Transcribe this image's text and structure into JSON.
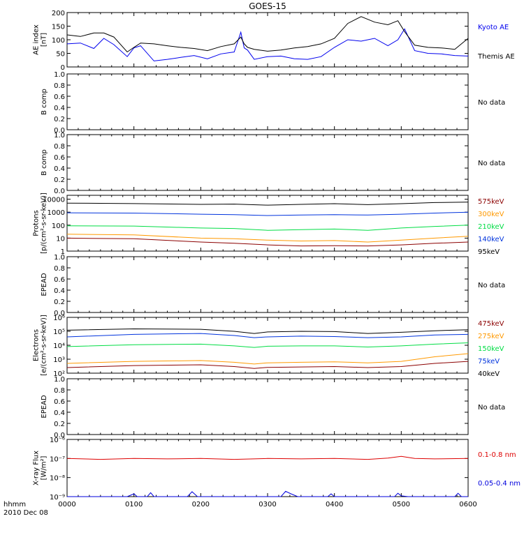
{
  "chart_data": {
    "title": "GOES-15",
    "type": "line",
    "footer": {
      "time_label": "hhmm",
      "date_label": "2010 Dec 08"
    },
    "x_ticks": [
      "0000",
      "0100",
      "0200",
      "0300",
      "0400",
      "0500",
      "0600"
    ],
    "xlim_hours": [
      0,
      6
    ],
    "panels": [
      {
        "id": "ae",
        "ylabel": [
          "AE index",
          "[nT]"
        ],
        "ylim": [
          0,
          200
        ],
        "scale": "linear",
        "y_ticks": [
          "0",
          "50",
          "100",
          "150",
          "200"
        ],
        "tick_values": [
          0,
          50,
          100,
          150,
          200
        ],
        "series": [
          {
            "name": "Kyoto AE",
            "color": "#0000ee",
            "x": [
              0,
              0.2,
              0.4,
              0.55,
              0.7,
              0.9,
              1.0,
              1.1,
              1.3,
              1.5,
              1.7,
              1.9,
              2.1,
              2.3,
              2.5,
              2.6,
              2.65,
              2.7,
              2.8,
              3.0,
              3.2,
              3.4,
              3.6,
              3.8,
              4.0,
              4.2,
              4.4,
              4.6,
              4.8,
              4.95,
              5.05,
              5.2,
              5.4,
              5.6,
              5.8,
              6.0
            ],
            "y": [
              85,
              88,
              68,
              105,
              82,
              38,
              70,
              78,
              22,
              28,
              35,
              42,
              30,
              48,
              55,
              128,
              70,
              62,
              28,
              38,
              40,
              30,
              28,
              38,
              72,
              100,
              95,
              105,
              78,
              100,
              140,
              60,
              50,
              48,
              42,
              40
            ]
          },
          {
            "name": "Themis AE",
            "color": "#000000",
            "x": [
              0,
              0.2,
              0.4,
              0.55,
              0.7,
              0.9,
              1.0,
              1.1,
              1.3,
              1.5,
              1.7,
              1.9,
              2.1,
              2.3,
              2.5,
              2.6,
              2.65,
              2.7,
              2.8,
              3.0,
              3.2,
              3.4,
              3.6,
              3.8,
              4.0,
              4.2,
              4.4,
              4.6,
              4.8,
              4.95,
              5.05,
              5.2,
              5.4,
              5.6,
              5.8,
              6.0
            ],
            "y": [
              118,
              112,
              125,
              125,
              110,
              55,
              72,
              88,
              85,
              78,
              72,
              68,
              60,
              75,
              85,
              110,
              85,
              72,
              65,
              58,
              62,
              70,
              75,
              85,
              105,
              160,
              185,
              165,
              155,
              170,
              130,
              80,
              72,
              70,
              65,
              105
            ]
          }
        ]
      },
      {
        "id": "b1",
        "ylabel": [
          "B comp"
        ],
        "ylim": [
          0,
          1
        ],
        "scale": "linear",
        "y_ticks": [
          "0.0",
          "0.2",
          "0.4",
          "0.6",
          "0.8",
          "1.0"
        ],
        "tick_values": [
          0,
          0.2,
          0.4,
          0.6,
          0.8,
          1.0
        ],
        "no_data": "No data",
        "series": []
      },
      {
        "id": "b2",
        "ylabel": [
          "B comp"
        ],
        "ylim": [
          0,
          1
        ],
        "scale": "linear",
        "y_ticks": [
          "0.0",
          "0.2",
          "0.4",
          "0.6",
          "0.8",
          "1.0"
        ],
        "tick_values": [
          0,
          0.2,
          0.4,
          0.6,
          0.8,
          1.0
        ],
        "no_data": "No data",
        "series": []
      },
      {
        "id": "protons",
        "ylabel": [
          "Protons",
          "[p/(cm²-s-sr-keV)]"
        ],
        "ylim": [
          1,
          20000
        ],
        "scale": "log",
        "y_ticks": [
          "1",
          "10",
          "100",
          "1000",
          "10000"
        ],
        "tick_values": [
          1,
          10,
          100,
          1000,
          10000
        ],
        "series": [
          {
            "name": "575keV",
            "color": "#8b0000",
            "x": [
              0,
              1,
              2,
              2.5,
              3,
              3.5,
              4,
              4.5,
              5,
              5.5,
              6
            ],
            "y": [
              10,
              9,
              5,
              4,
              3,
              2.5,
              2.6,
              2.5,
              3,
              4,
              5
            ]
          },
          {
            "name": "300keV",
            "color": "#ff9900",
            "x": [
              0,
              1,
              2,
              2.5,
              3,
              3.5,
              4,
              4.5,
              5,
              5.5,
              6
            ],
            "y": [
              20,
              18,
              10,
              9,
              7,
              6,
              6.5,
              5,
              7,
              10,
              14
            ]
          },
          {
            "name": "210keV",
            "color": "#00dd44",
            "x": [
              0,
              1,
              2,
              2.5,
              3,
              3.5,
              4,
              4.5,
              5,
              5.5,
              6
            ],
            "y": [
              90,
              85,
              60,
              55,
              40,
              45,
              50,
              40,
              60,
              80,
              100
            ]
          },
          {
            "name": "140keV",
            "color": "#0033dd",
            "x": [
              0,
              1,
              2,
              2.5,
              3,
              3.5,
              4,
              4.5,
              5,
              5.5,
              6
            ],
            "y": [
              900,
              850,
              700,
              650,
              550,
              600,
              650,
              600,
              700,
              850,
              1000
            ]
          },
          {
            "name": "95keV",
            "color": "#000000",
            "x": [
              0,
              1,
              2,
              2.5,
              3,
              3.5,
              4,
              4.5,
              5,
              5.5,
              6
            ],
            "y": [
              5000,
              4600,
              4000,
              4200,
              3500,
              4000,
              4500,
              3800,
              4500,
              5500,
              6000
            ]
          }
        ]
      },
      {
        "id": "epead1",
        "ylabel": [
          "EPEAD"
        ],
        "ylim": [
          0,
          1
        ],
        "scale": "linear",
        "y_ticks": [
          "0.0",
          "0.2",
          "0.4",
          "0.6",
          "0.8",
          "1.0"
        ],
        "tick_values": [
          0,
          0.2,
          0.4,
          0.6,
          0.8,
          1.0
        ],
        "no_data": "No data",
        "series": []
      },
      {
        "id": "electrons",
        "ylabel": [
          "Electrons",
          "[e/(cm²-s-sr-keV)]"
        ],
        "ylim": [
          100,
          1000000
        ],
        "scale": "log",
        "y_ticks": [
          "10²",
          "10³",
          "10⁴",
          "10⁵",
          "10⁶"
        ],
        "tick_values": [
          100,
          1000,
          10000,
          100000,
          1000000
        ],
        "series": [
          {
            "name": "475keV",
            "color": "#8b0000",
            "x": [
              0,
              1,
              2,
              2.5,
              2.8,
              3,
              3.5,
              4,
              4.5,
              5,
              5.5,
              6
            ],
            "y": [
              250,
              350,
              400,
              300,
              220,
              260,
              280,
              300,
              250,
              300,
              500,
              700
            ]
          },
          {
            "name": "275keV",
            "color": "#ff9900",
            "x": [
              0,
              1,
              2,
              2.5,
              2.8,
              3,
              3.5,
              4,
              4.5,
              5,
              5.5,
              6
            ],
            "y": [
              500,
              700,
              800,
              600,
              450,
              550,
              600,
              650,
              550,
              700,
              1500,
              2500
            ]
          },
          {
            "name": "150keV",
            "color": "#00dd44",
            "x": [
              0,
              1,
              2,
              2.5,
              2.8,
              3,
              3.5,
              4,
              4.5,
              5,
              5.5,
              6
            ],
            "y": [
              8000,
              11000,
              12000,
              9000,
              7000,
              8500,
              9000,
              9000,
              7500,
              9000,
              12000,
              15000
            ]
          },
          {
            "name": "75keV",
            "color": "#0033dd",
            "x": [
              0,
              1,
              2,
              2.5,
              2.8,
              3,
              3.5,
              4,
              4.5,
              5,
              5.5,
              6
            ],
            "y": [
              40000,
              60000,
              70000,
              50000,
              35000,
              40000,
              45000,
              42000,
              35000,
              40000,
              55000,
              60000
            ]
          },
          {
            "name": "40keV",
            "color": "#000000",
            "x": [
              0,
              1,
              2,
              2.5,
              2.8,
              3,
              3.5,
              4,
              4.5,
              5,
              5.5,
              6
            ],
            "y": [
              120000,
              150000,
              140000,
              100000,
              70000,
              90000,
              100000,
              95000,
              70000,
              85000,
              110000,
              130000
            ]
          }
        ]
      },
      {
        "id": "epead2",
        "ylabel": [
          "EPEAD"
        ],
        "ylim": [
          0,
          1
        ],
        "scale": "linear",
        "y_ticks": [
          "0.0",
          "0.2",
          "0.4",
          "0.6",
          "0.8",
          "1.0"
        ],
        "tick_values": [
          0,
          0.2,
          0.4,
          0.6,
          0.8,
          1.0
        ],
        "no_data": "No data",
        "series": []
      },
      {
        "id": "xray",
        "ylabel": [
          "X-ray Flux",
          "[W/m²]"
        ],
        "ylim": [
          1e-09,
          1e-06
        ],
        "scale": "log",
        "y_ticks": [
          "10⁻⁹",
          "10⁻⁸",
          "10⁻⁷",
          "10⁻⁶"
        ],
        "tick_values": [
          1e-09,
          1e-08,
          1e-07,
          1e-06
        ],
        "series": [
          {
            "name": "0.1-0.8 nm",
            "color": "#dd0000",
            "x": [
              0,
              0.5,
              1,
              1.5,
              2,
              2.5,
              3,
              3.5,
              4,
              4.5,
              4.8,
              5.0,
              5.2,
              5.5,
              6
            ],
            "y": [
              1e-07,
              9e-08,
              1e-07,
              9.5e-08,
              1e-07,
              9e-08,
              1e-07,
              9.5e-08,
              1e-07,
              9e-08,
              1.05e-07,
              1.3e-07,
              1e-07,
              9.5e-08,
              1e-07
            ]
          },
          {
            "name": "0.05-0.4 nm",
            "color": "#0000dd",
            "x": [
              0,
              0.9,
              1.0,
              1.05,
              1.2,
              1.25,
              1.3,
              1.8,
              1.87,
              1.95,
              2.5,
              3.0,
              3.2,
              3.27,
              3.35,
              3.45,
              3.9,
              3.95,
              4.0,
              4.9,
              4.95,
              5.0,
              5.1,
              5.8,
              5.85,
              5.9,
              6.0
            ],
            "y": [
              1e-09,
              1e-09,
              1.4e-09,
              1e-09,
              1e-09,
              1.6e-09,
              1e-09,
              1e-09,
              1.8e-09,
              1e-09,
              1e-09,
              1e-09,
              1e-09,
              1.9e-09,
              1.4e-09,
              1e-09,
              1e-09,
              1.4e-09,
              1e-09,
              1e-09,
              1.5e-09,
              1.1e-09,
              1e-09,
              1e-09,
              1.5e-09,
              1e-09,
              1e-09
            ]
          }
        ]
      }
    ]
  }
}
